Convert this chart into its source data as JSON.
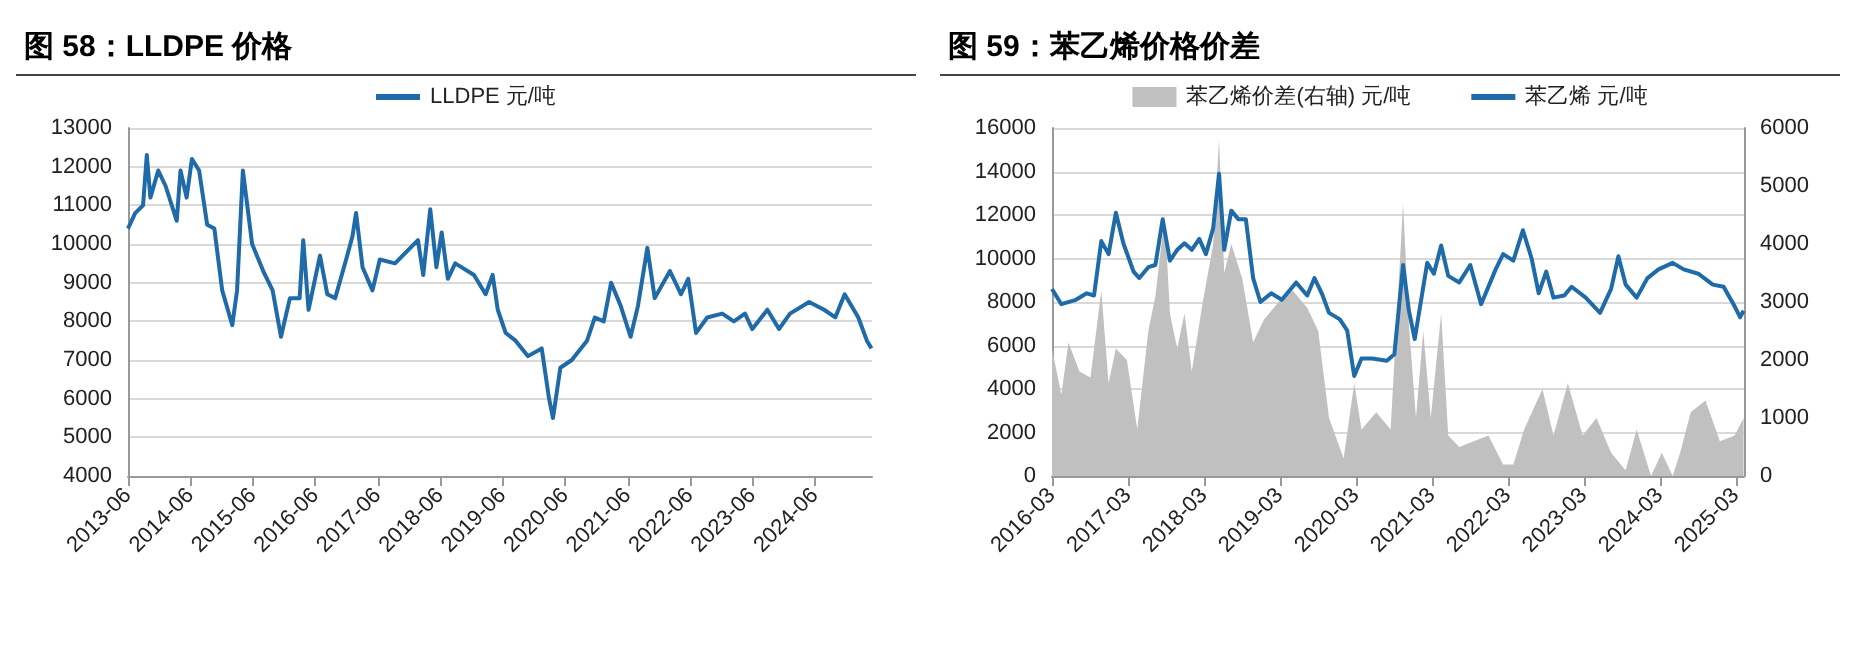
{
  "chart_data": [
    {
      "type": "line",
      "title": "图 58：LLDPE 价格",
      "legend": "top",
      "grid": "y",
      "marker": "none",
      "line_style": "solid",
      "xlim": [
        "2013-06-01",
        "2025-05-01"
      ],
      "xticks": [
        "2013-06",
        "2014-06",
        "2015-06",
        "2016-06",
        "2017-06",
        "2018-06",
        "2019-06",
        "2020-06",
        "2021-06",
        "2022-06",
        "2023-06",
        "2024-06"
      ],
      "ylim": [
        4000,
        13000
      ],
      "yticks": [
        4000,
        5000,
        6000,
        7000,
        8000,
        9000,
        10000,
        11000,
        12000,
        13000
      ],
      "series": [
        {
          "name": "LLDPE 元/吨",
          "color": "#1f6aa8",
          "x": [
            "2013-06-01",
            "2013-07-13",
            "2013-08-28",
            "2013-09-19",
            "2013-10-10",
            "2013-11-25",
            "2014-01-07",
            "2014-03-13",
            "2014-04-04",
            "2014-05-10",
            "2014-06-10",
            "2014-07-22",
            "2014-09-07",
            "2014-10-19",
            "2014-12-04",
            "2015-02-01",
            "2015-03-01",
            "2015-04-04",
            "2015-05-28",
            "2015-08-01",
            "2015-09-25",
            "2015-11-13",
            "2016-01-04",
            "2016-03-01",
            "2016-03-22",
            "2016-04-22",
            "2016-06-28",
            "2016-08-10",
            "2016-09-25",
            "2016-11-28",
            "2017-01-04",
            "2017-01-25",
            "2017-03-04",
            "2017-05-01",
            "2017-06-13",
            "2017-09-10",
            "2018-01-22",
            "2018-02-22",
            "2018-04-04",
            "2018-05-10",
            "2018-06-10",
            "2018-07-16",
            "2018-08-28",
            "2018-12-16",
            "2019-02-22",
            "2019-04-04",
            "2019-05-04",
            "2019-06-19",
            "2019-08-16",
            "2019-10-28",
            "2020-01-16",
            "2020-02-28",
            "2020-03-22",
            "2020-05-04",
            "2020-07-10",
            "2020-10-07",
            "2020-11-22",
            "2021-01-13",
            "2021-02-25",
            "2021-04-22",
            "2021-06-19",
            "2021-08-01",
            "2021-09-25",
            "2021-11-07",
            "2022-02-04",
            "2022-04-10",
            "2022-05-22",
            "2022-07-07",
            "2022-09-10",
            "2022-12-07",
            "2023-02-13",
            "2023-04-19",
            "2023-06-01",
            "2023-08-28",
            "2023-11-04",
            "2024-01-07",
            "2024-04-28",
            "2024-07-25",
            "2024-09-28",
            "2024-11-22",
            "2025-02-10",
            "2025-04-01",
            "2025-04-28"
          ],
          "values": [
            10400,
            10800,
            11000,
            12300,
            11200,
            11900,
            11500,
            10600,
            11900,
            11200,
            12200,
            11900,
            10500,
            10400,
            8800,
            7900,
            8800,
            11900,
            10000,
            9300,
            8800,
            7600,
            8600,
            8600,
            10100,
            8300,
            9700,
            8700,
            8600,
            9600,
            10200,
            10800,
            9400,
            8800,
            9600,
            9500,
            10100,
            9200,
            10900,
            9400,
            10300,
            9100,
            9500,
            9200,
            8700,
            9200,
            8300,
            7700,
            7500,
            7100,
            7300,
            6000,
            5500,
            6800,
            7000,
            7500,
            8100,
            8000,
            9000,
            8400,
            7600,
            8400,
            9900,
            8600,
            9300,
            8700,
            9100,
            7700,
            8100,
            8200,
            8000,
            8200,
            7800,
            8300,
            7800,
            8200,
            8500,
            8300,
            8100,
            8700,
            8100,
            7500,
            7300
          ]
        }
      ]
    },
    {
      "type": "line",
      "title": "图 59：苯乙烯价格价差",
      "legend": "top",
      "grid": "y",
      "marker": "none",
      "line_style": "solid",
      "xlim": [
        "2016-03-01",
        "2025-04-10"
      ],
      "xticks": [
        "2016-03",
        "2017-03",
        "2018-03",
        "2019-03",
        "2020-03",
        "2021-03",
        "2022-03",
        "2023-03",
        "2024-03",
        "2025-03"
      ],
      "ylim": [
        0,
        16000
      ],
      "yticks": [
        0,
        2000,
        4000,
        6000,
        8000,
        10000,
        12000,
        14000,
        16000
      ],
      "y2lim": [
        0,
        6000
      ],
      "y2ticks": [
        0,
        1000,
        2000,
        3000,
        4000,
        5000,
        6000
      ],
      "series": [
        {
          "name": "苯乙烯价差(右轴) 元/吨",
          "type": "area",
          "axis": "y2",
          "color": "#c0c0c0",
          "x": [
            "2016-03-01",
            "2016-04-15",
            "2016-05-19",
            "2016-07-11",
            "2016-09-02",
            "2016-10-24",
            "2016-11-28",
            "2017-01-02",
            "2017-02-24",
            "2017-04-15",
            "2017-06-07",
            "2017-07-11",
            "2017-08-25",
            "2017-09-19",
            "2017-10-24",
            "2017-11-28",
            "2018-01-02",
            "2018-02-24",
            "2018-04-15",
            "2018-05-13",
            "2018-06-07",
            "2018-07-11",
            "2018-09-02",
            "2018-10-24",
            "2018-12-15",
            "2019-02-24",
            "2019-05-02",
            "2019-07-11",
            "2019-09-02",
            "2019-10-24",
            "2020-01-02",
            "2020-02-22",
            "2020-03-28",
            "2020-06-07",
            "2020-08-15",
            "2020-10-14",
            "2020-11-11",
            "2020-12-15",
            "2021-01-19",
            "2021-02-24",
            "2021-04-15",
            "2021-05-19",
            "2021-07-11",
            "2021-09-19",
            "2021-11-28",
            "2022-02-07",
            "2022-03-28",
            "2022-05-19",
            "2022-08-15",
            "2022-10-07",
            "2022-12-15",
            "2023-02-24",
            "2023-05-02",
            "2023-07-11",
            "2023-09-19",
            "2023-11-11",
            "2024-01-19",
            "2024-03-11",
            "2024-05-02",
            "2024-06-07",
            "2024-07-28",
            "2024-10-07",
            "2024-12-15",
            "2025-02-24",
            "2025-04-08"
          ],
          "values": [
            2200,
            1400,
            2300,
            1800,
            1700,
            3200,
            1600,
            2200,
            2000,
            800,
            2500,
            3100,
            4500,
            2800,
            2200,
            2800,
            1800,
            3000,
            4000,
            5800,
            3500,
            4000,
            3400,
            2300,
            2700,
            3000,
            3200,
            2900,
            2500,
            1000,
            300,
            1600,
            800,
            1100,
            800,
            4700,
            2600,
            1000,
            2500,
            1000,
            2800,
            700,
            500,
            600,
            700,
            200,
            200,
            800,
            1500,
            700,
            1600,
            700,
            1000,
            400,
            100,
            800,
            0,
            400,
            0,
            400,
            1100,
            1300,
            600,
            700,
            1000
          ]
        },
        {
          "name": "苯乙烯 元/吨",
          "color": "#1f6aa8",
          "x": [
            "2016-03-01",
            "2016-04-15",
            "2016-06-24",
            "2016-08-15",
            "2016-09-19",
            "2016-10-24",
            "2016-11-28",
            "2017-01-02",
            "2017-02-07",
            "2017-03-28",
            "2017-04-25",
            "2017-06-07",
            "2017-07-11",
            "2017-08-15",
            "2017-09-19",
            "2017-10-24",
            "2017-11-28",
            "2018-01-02",
            "2018-02-07",
            "2018-03-11",
            "2018-04-15",
            "2018-05-13",
            "2018-06-07",
            "2018-07-11",
            "2018-08-15",
            "2018-09-19",
            "2018-10-24",
            "2018-11-28",
            "2019-01-19",
            "2019-03-11",
            "2019-05-19",
            "2019-07-11",
            "2019-08-15",
            "2019-09-19",
            "2019-10-24",
            "2019-12-15",
            "2020-01-19",
            "2020-02-22",
            "2020-03-28",
            "2020-05-19",
            "2020-07-28",
            "2020-09-02",
            "2020-10-14",
            "2020-11-11",
            "2020-12-09",
            "2021-02-07",
            "2021-03-11",
            "2021-04-15",
            "2021-05-19",
            "2021-07-11",
            "2021-09-02",
            "2021-10-24",
            "2022-01-02",
            "2022-02-07",
            "2022-03-28",
            "2022-05-13",
            "2022-06-24",
            "2022-07-28",
            "2022-09-02",
            "2022-10-07",
            "2022-11-28",
            "2023-01-02",
            "2023-03-11",
            "2023-05-19",
            "2023-07-11",
            "2023-08-15",
            "2023-09-19",
            "2023-11-11",
            "2024-01-02",
            "2024-02-24",
            "2024-05-02",
            "2024-06-24",
            "2024-09-02",
            "2024-11-11",
            "2025-01-02",
            "2025-02-24",
            "2025-03-22",
            "2025-04-08"
          ],
          "values": [
            8600,
            7900,
            8100,
            8400,
            8300,
            10800,
            10200,
            12100,
            10700,
            9400,
            9100,
            9600,
            9700,
            11800,
            9900,
            10400,
            10700,
            10400,
            10900,
            10200,
            11400,
            13900,
            10400,
            12200,
            11800,
            11800,
            9100,
            8000,
            8400,
            8100,
            8900,
            8300,
            9100,
            8400,
            7500,
            7200,
            6700,
            4600,
            5400,
            5400,
            5300,
            5600,
            9700,
            7600,
            6300,
            9800,
            9300,
            10600,
            9200,
            8900,
            9700,
            7900,
            9500,
            10200,
            9900,
            11300,
            10000,
            8400,
            9400,
            8200,
            8300,
            8700,
            8200,
            7500,
            8600,
            10100,
            8800,
            8200,
            9100,
            9500,
            9800,
            9500,
            9300,
            8800,
            8700,
            7800,
            7300,
            7600
          ]
        }
      ]
    }
  ]
}
